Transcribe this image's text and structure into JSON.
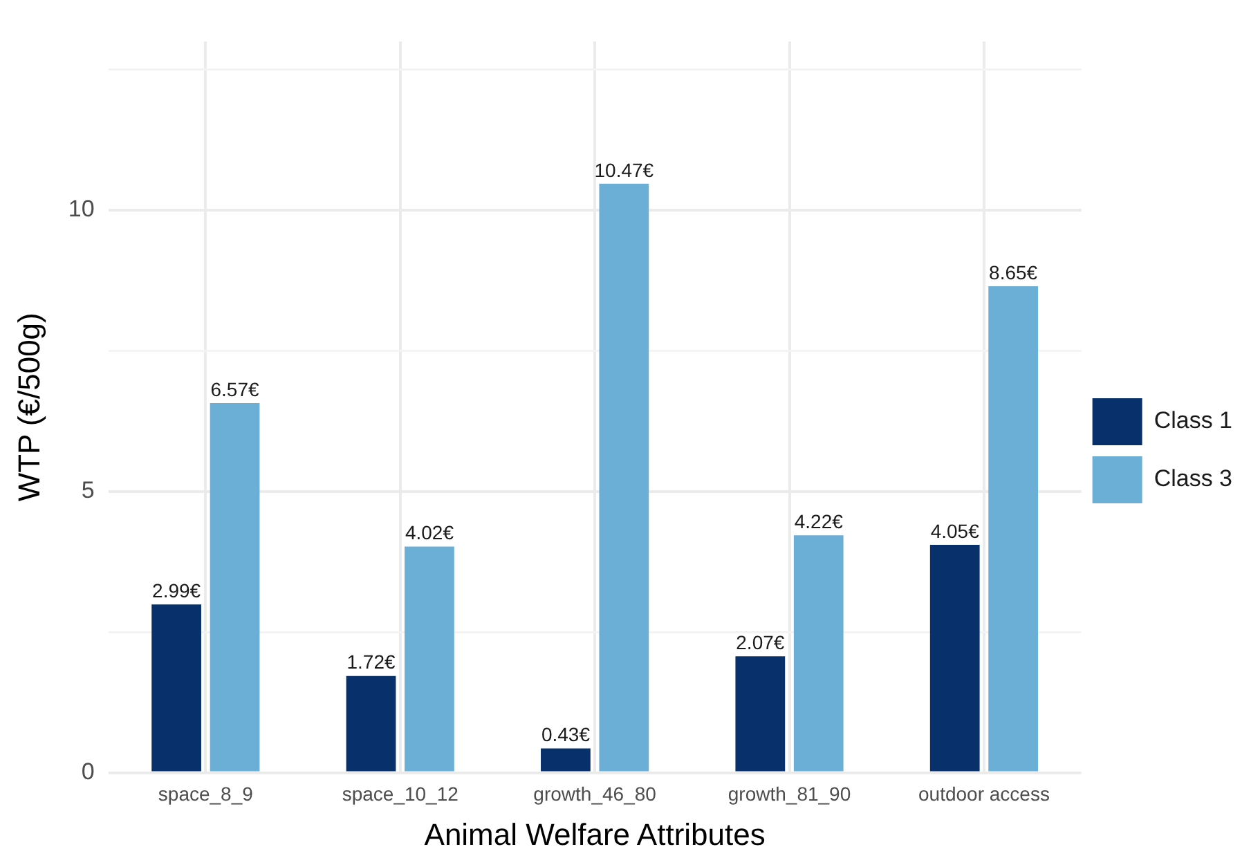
{
  "chart_data": {
    "type": "bar",
    "xlabel": "Animal Welfare Attributes",
    "ylabel": "WTP (€/500g)",
    "categories": [
      "space_8_9",
      "space_10_12",
      "growth_46_80",
      "growth_81_90",
      "outdoor access"
    ],
    "series": [
      {
        "name": "Class 1",
        "color": "#08306b",
        "values": [
          2.99,
          1.72,
          0.43,
          2.07,
          4.05
        ],
        "value_labels": [
          "2.99€",
          "1.72€",
          "0.43€",
          "2.07€",
          "4.05€"
        ]
      },
      {
        "name": "Class 3",
        "color": "#6baed6",
        "values": [
          6.57,
          4.02,
          10.47,
          4.22,
          8.65
        ],
        "value_labels": [
          "6.57€",
          "4.02€",
          "10.47€",
          "4.22€",
          "8.65€"
        ]
      }
    ],
    "ylim": [
      0,
      13
    ],
    "yticks": [
      0,
      {
        "value": 2.5,
        "label": null
      },
      5,
      {
        "value": 7.5,
        "label": null
      },
      10,
      {
        "value": 12.5,
        "label": null
      }
    ],
    "grid": true,
    "legend": "right"
  }
}
